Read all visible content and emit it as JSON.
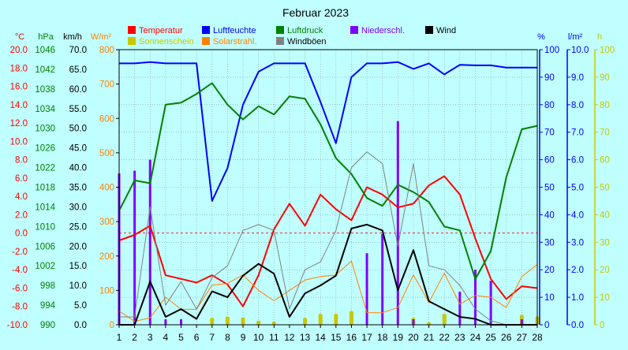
{
  "chart_data": {
    "type": "line",
    "title": "Februar 2023",
    "x": [
      1,
      2,
      3,
      4,
      5,
      6,
      7,
      8,
      9,
      10,
      11,
      12,
      13,
      14,
      15,
      16,
      17,
      18,
      19,
      20,
      21,
      22,
      23,
      24,
      25,
      26,
      27,
      28
    ],
    "xlim": [
      1,
      28
    ],
    "legend_placement": "top",
    "axes": {
      "temp": {
        "unit": "°C",
        "min": -10,
        "max": 20,
        "ticks": [
          "20.0",
          "18.0",
          "16.0",
          "14.0",
          "12.0",
          "10.0",
          "8.0",
          "6.0",
          "4.0",
          "2.0",
          "0.0",
          "-2.0",
          "-4.0",
          "-6.0",
          "-8.0",
          "-10.0"
        ],
        "color": "#ff0000"
      },
      "press": {
        "unit": "hPa",
        "min": 990,
        "max": 1046,
        "ticks": [
          "1046",
          "1042",
          "1038",
          "1034",
          "1030",
          "1026",
          "1022",
          "1018",
          "1014",
          "1010",
          "1006",
          "1002",
          "998",
          "994",
          "990"
        ],
        "color": "#008000"
      },
      "wind": {
        "unit": "km/h",
        "min": 0,
        "max": 70,
        "ticks": [
          "70.0",
          "65.0",
          "60.0",
          "55.0",
          "50.0",
          "45.0",
          "40.0",
          "35.0",
          "30.0",
          "25.0",
          "20.0",
          "15.0",
          "10.0",
          "5.0",
          "0.0"
        ],
        "color": "#000000"
      },
      "rad": {
        "unit": "W/m²",
        "min": 0,
        "max": 800,
        "ticks": [
          "800",
          "700",
          "600",
          "500",
          "400",
          "300",
          "200",
          "100",
          "0"
        ],
        "color": "#ff8000"
      },
      "hum": {
        "unit": "%",
        "min": 0,
        "max": 100,
        "ticks": [
          "100",
          "90",
          "80",
          "70",
          "60",
          "50",
          "40",
          "30",
          "20",
          "10",
          "0"
        ],
        "color": "#0000ff"
      },
      "rain": {
        "unit": "l/m²",
        "min": 0,
        "max": 10,
        "ticks": [
          "10.0",
          "9.0",
          "8.0",
          "7.0",
          "6.0",
          "5.0",
          "4.0",
          "3.0",
          "2.0",
          "1.0",
          "0.0"
        ],
        "color": "#0000ff"
      },
      "sun": {
        "unit": "h",
        "min": 0,
        "max": 100,
        "ticks": [
          "100",
          "90",
          "80",
          "70",
          "60",
          "50",
          "40",
          "30",
          "20",
          "10",
          "0"
        ],
        "color": "#c8c800"
      }
    },
    "grid": true,
    "series": [
      {
        "name": "Temperatur",
        "axis": "temp",
        "color": "#ff0000",
        "kind": "line",
        "values": [
          -0.8,
          -0.2,
          0.8,
          -4.6,
          -5.0,
          -5.4,
          -4.6,
          -5.6,
          -8.0,
          -4.6,
          0.4,
          3.2,
          0.8,
          4.2,
          2.6,
          1.4,
          5.0,
          4.2,
          2.8,
          3.2,
          5.2,
          6.2,
          4.2,
          -0.6,
          -5.0,
          -7.2,
          -5.8,
          -6.0
        ]
      },
      {
        "name": "Sonnenschein",
        "axis": "sun",
        "color": "#c8c800",
        "kind": "bar",
        "values": [
          0,
          0,
          0,
          0,
          0,
          0,
          2.5,
          3.0,
          2.6,
          1.5,
          1.2,
          0,
          2.5,
          4.0,
          4.0,
          5.0,
          0,
          0,
          0,
          2.5,
          1.0,
          4.0,
          0,
          0,
          0,
          0,
          3.6,
          3.0
        ]
      },
      {
        "name": "Luftfeuchte",
        "axis": "hum",
        "color": "#0000ff",
        "kind": "line",
        "values": [
          95,
          95,
          95.5,
          95,
          95,
          95,
          45,
          57,
          80,
          92,
          95,
          95,
          95,
          81,
          66,
          90,
          95,
          95,
          95.5,
          93,
          95,
          91,
          94.5,
          94.3,
          94.3,
          93.5,
          93.5,
          93.5
        ]
      },
      {
        "name": "Solarstrahl.",
        "axis": "rad",
        "color": "#ff8000",
        "kind": "line",
        "values": [
          40,
          10,
          20,
          80,
          45,
          45,
          115,
          120,
          145,
          100,
          70,
          100,
          130,
          140,
          145,
          185,
          35,
          35,
          50,
          145,
          65,
          150,
          60,
          85,
          80,
          50,
          140,
          175
        ]
      },
      {
        "name": "Luftdruck",
        "axis": "press",
        "color": "#008000",
        "kind": "line",
        "values": [
          1013.2,
          1019.4,
          1018.8,
          1034.8,
          1035.2,
          1037.0,
          1039.2,
          1034.8,
          1031.8,
          1034.5,
          1032.8,
          1036.5,
          1036.0,
          1030.8,
          1023.9,
          1020.7,
          1015.8,
          1014.2,
          1018.5,
          1017.0,
          1015.0,
          1010.0,
          1009.2,
          999.3,
          1005.0,
          1020.0,
          1029.8,
          1030.5
        ]
      },
      {
        "name": "Windböen",
        "axis": "wind",
        "color": "#808080",
        "kind": "line",
        "values": [
          2,
          2,
          30,
          5,
          11,
          4,
          12,
          15,
          24,
          25.5,
          24,
          4,
          14,
          16,
          24,
          40,
          44,
          41,
          20,
          41,
          15,
          14,
          10,
          4,
          1,
          0,
          0,
          0
        ]
      },
      {
        "name": "Niederschl.",
        "axis": "rain",
        "color": "#8000ff",
        "kind": "bar",
        "values": [
          5.5,
          5.6,
          6.0,
          0.2,
          0.2,
          0,
          0,
          0,
          0,
          0,
          0,
          0,
          0,
          0,
          0,
          0,
          2.6,
          3.3,
          7.4,
          0.2,
          0,
          0,
          1.2,
          2.0,
          1.6,
          0,
          0.2,
          0
        ]
      },
      {
        "name": "Wind",
        "axis": "wind",
        "color": "#000000",
        "kind": "line",
        "values": [
          0,
          0,
          11,
          2,
          4,
          1.5,
          8.5,
          7,
          12.5,
          15.5,
          13,
          2,
          8,
          10,
          12.5,
          24.5,
          25.5,
          24,
          8.8,
          19,
          6,
          4,
          2,
          1.5,
          0,
          0,
          0,
          0
        ]
      }
    ]
  }
}
